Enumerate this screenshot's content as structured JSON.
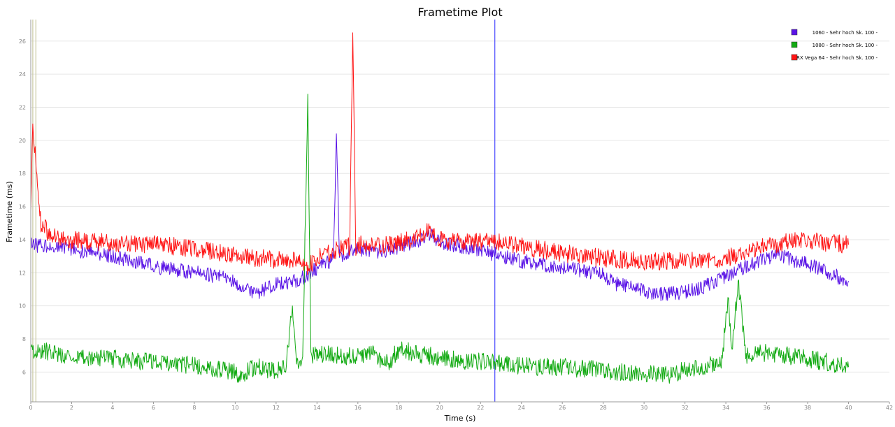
{
  "chart_data": {
    "type": "line",
    "title": "Frametime Plot",
    "xlabel": "Time (s)",
    "ylabel": "Frametime (ms)",
    "xlim": [
      0,
      42
    ],
    "ylim": [
      4.2,
      27.3
    ],
    "x_ticks": [
      0,
      2,
      4,
      6,
      8,
      10,
      12,
      14,
      16,
      18,
      20,
      22,
      24,
      26,
      28,
      30,
      32,
      34,
      36,
      38,
      40,
      42
    ],
    "y_ticks": [
      6,
      8,
      10,
      12,
      14,
      16,
      18,
      20,
      22,
      24,
      26
    ],
    "grid": true,
    "legend_position": "top-right",
    "series": [
      {
        "name": "1060 - Sehr hoch Sk. 100 -",
        "color": "#5a14e6",
        "x": [
          0,
          0.5,
          1,
          2,
          3,
          4,
          5,
          6,
          7,
          8,
          9,
          10,
          10.5,
          11,
          12,
          13,
          13.5,
          14,
          14.8,
          14.95,
          15.1,
          15.5,
          16,
          17,
          18,
          19,
          19.5,
          20,
          21,
          22,
          23,
          24,
          25,
          26,
          27,
          28,
          28.5,
          29,
          30,
          31,
          32,
          33,
          34,
          35,
          36,
          36.5,
          37,
          38,
          39,
          40
        ],
        "y": [
          13.8,
          13.6,
          13.5,
          13.4,
          13.2,
          13.0,
          12.7,
          12.4,
          12.2,
          12.0,
          11.8,
          11.5,
          11.0,
          10.8,
          11.3,
          11.5,
          11.8,
          12.3,
          12.8,
          20.4,
          13.0,
          13.2,
          13.4,
          13.3,
          13.5,
          14.0,
          14.3,
          13.9,
          13.6,
          13.4,
          13.0,
          12.7,
          12.5,
          12.3,
          12.1,
          11.9,
          11.4,
          11.2,
          10.9,
          10.7,
          10.8,
          11.2,
          11.8,
          12.4,
          12.9,
          13.1,
          12.9,
          12.5,
          12.0,
          11.5
        ]
      },
      {
        "name": "1080 - Sehr hoch Sk. 100 -",
        "color": "#12aa12",
        "x": [
          0,
          1,
          2,
          3,
          4,
          5,
          6,
          7,
          8,
          9,
          10,
          10.2,
          11,
          12,
          12.5,
          12.8,
          13,
          13.3,
          13.55,
          13.7,
          14,
          15,
          16,
          16.5,
          17,
          17.5,
          18,
          19,
          20,
          21,
          22,
          23,
          24,
          25,
          26,
          27,
          28,
          29,
          30,
          31,
          32,
          33,
          33.8,
          34.1,
          34.3,
          34.6,
          35,
          36,
          37,
          38,
          39,
          40
        ],
        "y": [
          7.3,
          7.2,
          7.0,
          6.9,
          6.8,
          6.7,
          6.6,
          6.5,
          6.4,
          6.2,
          6.0,
          5.8,
          6.3,
          6.1,
          6.5,
          10.0,
          6.6,
          6.8,
          22.8,
          7.0,
          7.1,
          7.0,
          6.9,
          7.3,
          6.8,
          6.5,
          7.4,
          7.1,
          6.9,
          6.7,
          6.6,
          6.5,
          6.4,
          6.3,
          6.3,
          6.2,
          6.1,
          6.0,
          5.9,
          5.8,
          6.1,
          6.3,
          6.6,
          10.5,
          7.2,
          11.5,
          7.0,
          7.2,
          7.0,
          6.8,
          6.6,
          6.3
        ]
      },
      {
        "name": "RX Vega 64 - Sehr hoch Sk. 100 -",
        "color": "#ff1414",
        "x": [
          0,
          0.1,
          0.5,
          1,
          2,
          3,
          4,
          5,
          6,
          7,
          8,
          9,
          10,
          11,
          12,
          13,
          13.5,
          14,
          15,
          15.6,
          15.75,
          15.9,
          16,
          17,
          18,
          19,
          19.5,
          20,
          21,
          22,
          23,
          24,
          25,
          26,
          27,
          28,
          29,
          30,
          31,
          32,
          33,
          34,
          35,
          36,
          37,
          38,
          39,
          40
        ],
        "y": [
          15.5,
          21.0,
          15.0,
          14.2,
          14.0,
          13.9,
          13.8,
          13.8,
          13.7,
          13.6,
          13.4,
          13.3,
          13.1,
          12.9,
          12.8,
          12.7,
          12.3,
          12.9,
          13.4,
          13.6,
          26.5,
          13.5,
          13.7,
          13.6,
          13.8,
          14.2,
          14.6,
          14.0,
          13.9,
          13.9,
          13.8,
          13.6,
          13.4,
          13.2,
          13.0,
          12.9,
          12.8,
          12.7,
          12.7,
          12.7,
          12.8,
          12.9,
          13.2,
          13.6,
          13.9,
          14.0,
          13.8,
          13.7
        ]
      }
    ],
    "markers": [
      {
        "x": 0.1,
        "color": "#c8c8a0"
      },
      {
        "x": 0.25,
        "color": "#c8c8a0"
      },
      {
        "x": 22.7,
        "color": "#4646ff"
      }
    ]
  }
}
